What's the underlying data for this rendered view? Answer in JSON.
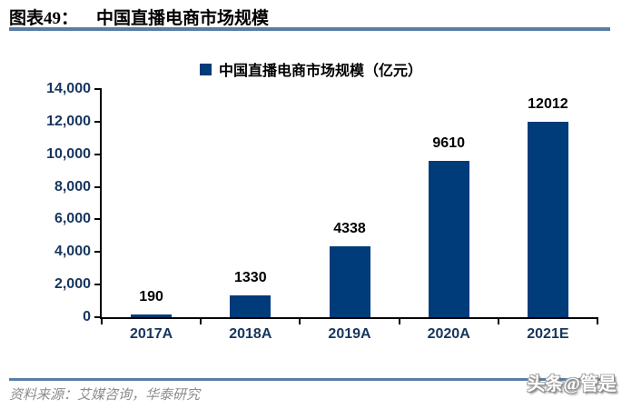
{
  "header": {
    "figure_label": "图表49：",
    "title": "中国直播电商市场规模"
  },
  "legend": {
    "label": "中国直播电商市场规模（亿元）"
  },
  "chart_data": {
    "type": "bar",
    "title": "中国直播电商市场规模",
    "unit": "亿元",
    "categories": [
      "2017A",
      "2018A",
      "2019A",
      "2020A",
      "2021E"
    ],
    "values": [
      190,
      1330,
      4338,
      9610,
      12012
    ],
    "xlabel": "",
    "ylabel": "",
    "ylim": [
      0,
      14000
    ],
    "y_ticks": [
      0,
      2000,
      4000,
      6000,
      8000,
      10000,
      12000,
      14000
    ],
    "y_tick_labels": [
      "0",
      "2,000",
      "4,000",
      "6,000",
      "8,000",
      "10,000",
      "12,000",
      "14,000"
    ],
    "grid": false,
    "legend_position": "top",
    "data_labels": true
  },
  "footer": {
    "source": "资料来源：艾媒咨询，华泰研究",
    "watermark": "头条@管是"
  },
  "colors": {
    "bar": "#003B7A",
    "rule": "#5B7DA5",
    "axis_label": "#17365D",
    "data_label": "#000000",
    "source_text": "#8C8C8C",
    "axis_line": "#000000"
  }
}
